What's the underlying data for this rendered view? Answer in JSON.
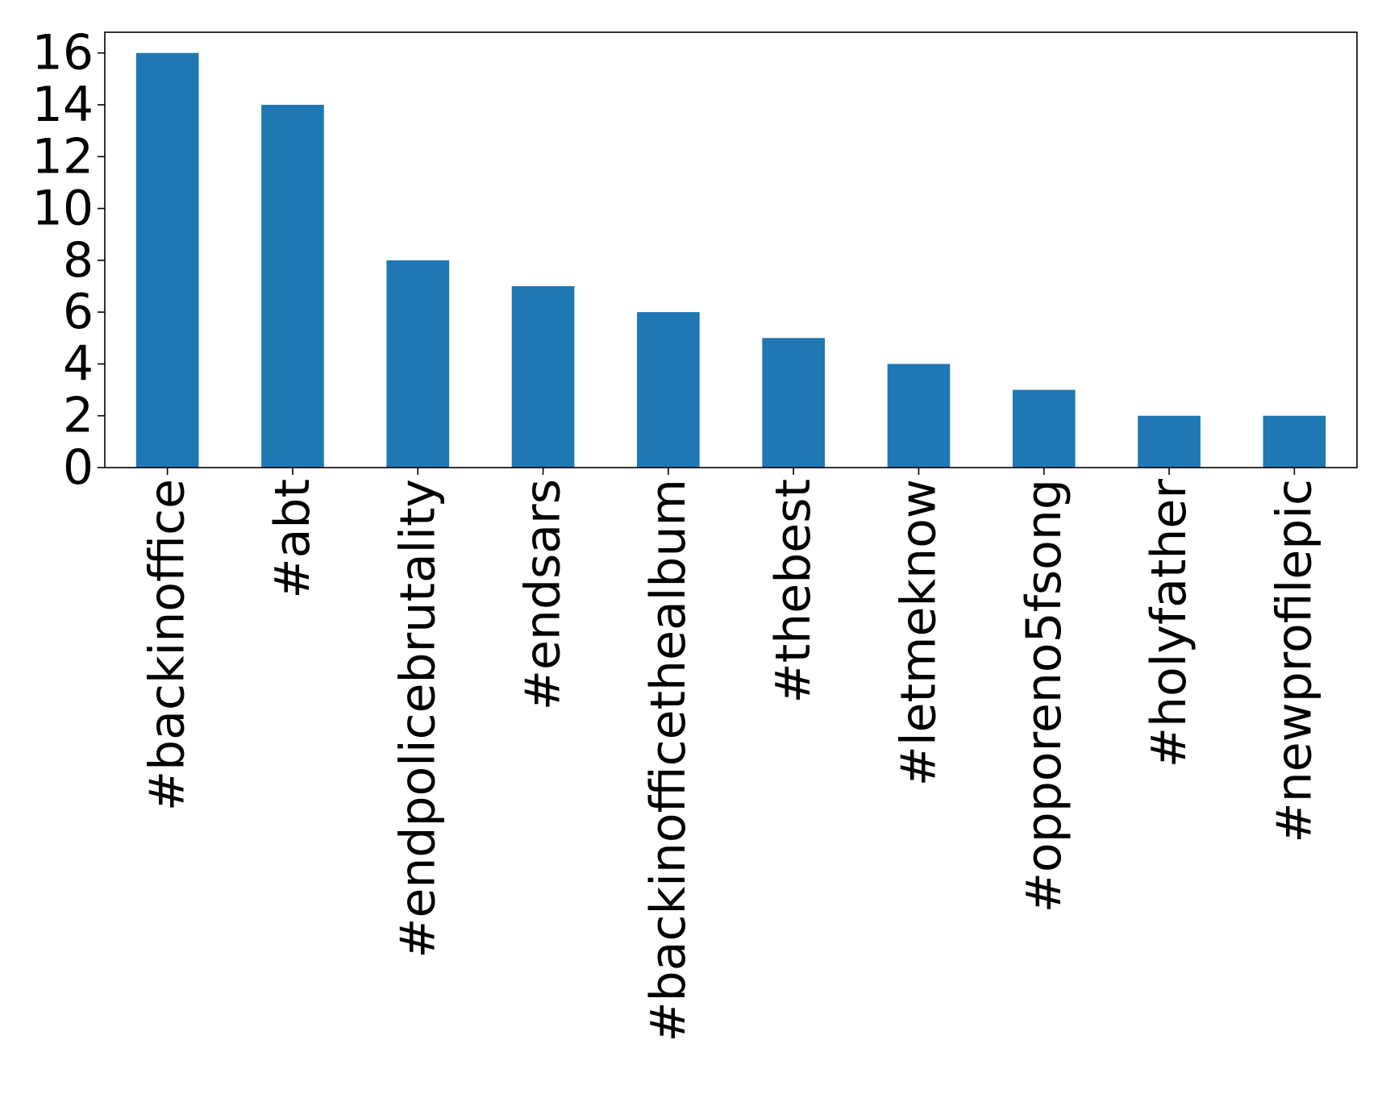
{
  "chart_data": {
    "type": "bar",
    "title": "",
    "xlabel": "",
    "ylabel": "",
    "categories": [
      "#backinoffice",
      "#abt",
      "#endpolicebrutality",
      "#endsars",
      "#backinofficethealbum",
      "#thebest",
      "#letmeknow",
      "#opporeno5fsong",
      "#holyfather",
      "#newprofilepic"
    ],
    "values": [
      16,
      14,
      8,
      7,
      6,
      5,
      4,
      3,
      2,
      2
    ],
    "ylim": [
      0,
      16.8
    ],
    "yticks": [
      0,
      2,
      4,
      6,
      8,
      10,
      12,
      14,
      16
    ],
    "grid": false,
    "legend": "none",
    "bar_color": "#1f77b4"
  }
}
